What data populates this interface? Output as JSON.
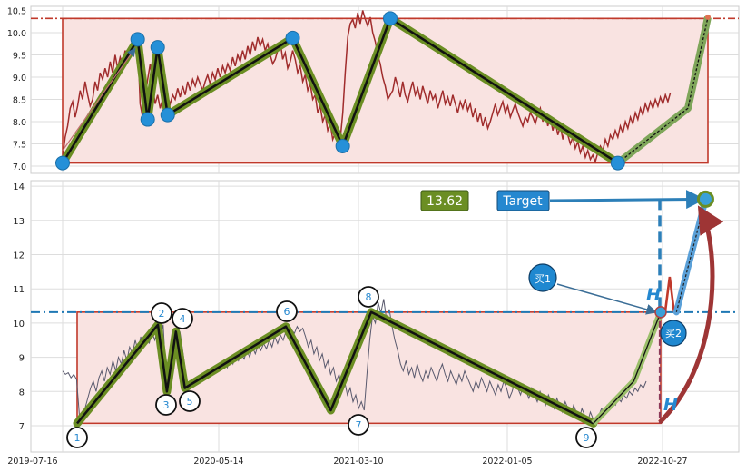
{
  "chart_data": [
    {
      "type": "line",
      "panel": "top",
      "ylim": [
        6.9,
        10.65
      ],
      "yticks": [
        7.0,
        7.5,
        8.0,
        8.5,
        9.0,
        9.5,
        10.0,
        10.5
      ],
      "ytick_labels": [
        "7.0",
        "7.5",
        "8.0",
        "8.5",
        "9.0",
        "9.5",
        "10.0",
        "10.5"
      ],
      "resistance_level": 10.32,
      "box": {
        "x": [
          0,
          258
        ],
        "y": [
          7.07,
          10.32
        ]
      },
      "pivots": {
        "x": [
          0,
          30,
          34,
          38,
          42,
          92,
          112,
          131,
          222
        ],
        "y": [
          7.07,
          9.85,
          8.05,
          9.67,
          8.15,
          9.88,
          7.45,
          10.32,
          7.07
        ]
      },
      "projection": {
        "x": [
          222,
          250,
          258
        ],
        "y": [
          7.07,
          8.3,
          10.35
        ]
      },
      "price_series": [
        7.2,
        7.65,
        7.9,
        8.3,
        8.45,
        8.1,
        8.35,
        8.7,
        8.5,
        8.9,
        8.6,
        8.35,
        8.5,
        8.9,
        8.7,
        9.1,
        8.95,
        9.2,
        9.0,
        9.35,
        9.1,
        9.5,
        9.2,
        9.45,
        9.3,
        9.6,
        9.4,
        9.55,
        9.75,
        9.6,
        9.85,
        8.4,
        8.1,
        8.55,
        8.95,
        9.3,
        8.8,
        8.4,
        8.6,
        8.3,
        8.5,
        8.45,
        8.55,
        8.4,
        8.6,
        8.5,
        8.75,
        8.55,
        8.8,
        8.6,
        8.9,
        8.7,
        8.95,
        8.8,
        9.0,
        8.85,
        8.7,
        8.9,
        9.05,
        8.85,
        9.1,
        8.95,
        9.2,
        9.0,
        9.25,
        9.1,
        9.3,
        9.15,
        9.45,
        9.25,
        9.5,
        9.35,
        9.6,
        9.4,
        9.7,
        9.5,
        9.8,
        9.6,
        9.9,
        9.7,
        9.85,
        9.6,
        9.75,
        9.5,
        9.3,
        9.4,
        9.6,
        9.8,
        9.4,
        9.55,
        9.2,
        9.35,
        9.6,
        9.4,
        9.1,
        9.25,
        8.9,
        9.05,
        8.7,
        8.85,
        8.5,
        8.6,
        8.2,
        8.35,
        8.0,
        8.15,
        7.8,
        7.95,
        7.6,
        7.75,
        7.5,
        7.6,
        8.2,
        9.1,
        9.9,
        10.2,
        10.3,
        10.1,
        10.45,
        10.2,
        10.5,
        10.3,
        10.15,
        10.35,
        10.0,
        9.8,
        9.5,
        9.3,
        9.0,
        8.8,
        8.5,
        8.6,
        8.7,
        9.0,
        8.8,
        8.55,
        8.9,
        8.6,
        8.45,
        8.7,
        8.9,
        8.6,
        8.75,
        8.5,
        8.8,
        8.6,
        8.4,
        8.7,
        8.5,
        8.6,
        8.3,
        8.5,
        8.7,
        8.4,
        8.55,
        8.35,
        8.6,
        8.4,
        8.2,
        8.45,
        8.3,
        8.5,
        8.25,
        8.4,
        8.1,
        8.3,
        8.0,
        8.2,
        7.9,
        8.1,
        7.85,
        8.0,
        8.2,
        8.4,
        8.15,
        8.3,
        8.45,
        8.2,
        8.35,
        8.1,
        8.25,
        8.4,
        8.2,
        8.05,
        7.9,
        8.1,
        8.0,
        8.2,
        8.1,
        7.95,
        8.15,
        8.3,
        8.0,
        8.2,
        7.9,
        8.1,
        7.8,
        8.0,
        7.7,
        7.9,
        7.6,
        7.85,
        7.7,
        7.5,
        7.65,
        7.4,
        7.55,
        7.3,
        7.45,
        7.2,
        7.35,
        7.15,
        7.25,
        7.1,
        7.3,
        7.45,
        7.35,
        7.6,
        7.45,
        7.7,
        7.6,
        7.8,
        7.65,
        7.9,
        7.75,
        8.0,
        7.85,
        8.1,
        7.95,
        8.2,
        8.05,
        8.3,
        8.15,
        8.4,
        8.25,
        8.45,
        8.3,
        8.5,
        8.35,
        8.55,
        8.4,
        8.6,
        8.45,
        8.65
      ]
    },
    {
      "type": "line",
      "panel": "bottom",
      "ylim": [
        6.25,
        14.2
      ],
      "yticks": [
        7,
        8,
        9,
        10,
        11,
        12,
        13,
        14
      ],
      "ytick_labels": [
        "7",
        "8",
        "9",
        "10",
        "11",
        "12",
        "13",
        "14"
      ],
      "x_dates": [
        "2019-07-16",
        "2020-05-14",
        "2021-03-10",
        "2022-01-05",
        "2022-10-27"
      ],
      "resistance_level": 10.32,
      "box": {
        "x": [
          0,
          260
        ],
        "y": [
          7.07,
          10.32
        ]
      },
      "pivots": {
        "x": [
          0,
          36,
          40,
          44,
          48,
          93,
          113,
          131,
          230
        ],
        "y": [
          7.07,
          9.95,
          8.0,
          9.75,
          8.1,
          9.9,
          7.45,
          10.32,
          7.07
        ],
        "labels": [
          "1",
          "2",
          "3",
          "4",
          "5",
          "6",
          "7",
          "8",
          "9"
        ]
      },
      "projection": {
        "x": [
          230,
          248,
          260
        ],
        "y": [
          7.07,
          8.3,
          10.32
        ]
      },
      "buy_points": [
        {
          "label": "买1",
          "x": 260,
          "y": 10.32
        },
        {
          "label": "买2",
          "x": 267,
          "y": 10.32
        }
      ],
      "spike": {
        "x": [
          262,
          264,
          266
        ],
        "y": [
          10.32,
          11.35,
          10.32
        ]
      },
      "target": {
        "label": "Target",
        "value": "13.62",
        "x": 280,
        "y": 13.62
      },
      "height_marker": "H",
      "price_series": [
        8.6,
        8.5,
        8.55,
        8.4,
        8.5,
        8.35,
        7.3,
        7.2,
        7.5,
        7.8,
        8.1,
        8.3,
        8.0,
        8.4,
        8.6,
        8.3,
        8.7,
        8.5,
        8.9,
        8.6,
        9.0,
        8.8,
        9.2,
        8.9,
        9.3,
        9.1,
        9.5,
        9.2,
        9.6,
        9.3,
        9.7,
        9.4,
        9.75,
        9.5,
        9.8,
        9.6,
        9.95,
        8.5,
        8.0,
        8.4,
        9.0,
        9.5,
        9.75,
        9.2,
        8.6,
        8.1,
        8.3,
        8.2,
        8.4,
        8.3,
        8.5,
        8.4,
        8.6,
        8.5,
        8.7,
        8.6,
        8.8,
        8.65,
        8.9,
        8.7,
        9.0,
        8.8,
        9.05,
        8.9,
        9.1,
        8.95,
        9.2,
        9.0,
        9.3,
        9.1,
        9.35,
        9.2,
        9.4,
        9.25,
        9.5,
        9.3,
        9.6,
        9.4,
        9.65,
        9.5,
        9.75,
        9.6,
        9.8,
        9.7,
        9.9,
        9.75,
        9.85,
        9.6,
        9.3,
        9.5,
        9.1,
        9.3,
        8.9,
        9.1,
        8.7,
        8.9,
        8.5,
        8.7,
        8.3,
        8.5,
        8.1,
        8.3,
        7.9,
        8.1,
        7.7,
        7.9,
        7.5,
        7.7,
        7.45,
        8.5,
        9.5,
        10.2,
        10.0,
        10.6,
        10.3,
        10.7,
        10.1,
        10.4,
        9.9,
        9.5,
        9.2,
        8.8,
        8.6,
        8.9,
        8.5,
        8.7,
        8.4,
        8.8,
        8.5,
        8.3,
        8.6,
        8.4,
        8.7,
        8.5,
        8.3,
        8.6,
        8.8,
        8.5,
        8.3,
        8.6,
        8.4,
        8.2,
        8.5,
        8.3,
        8.6,
        8.4,
        8.2,
        8.0,
        8.3,
        8.1,
        8.4,
        8.2,
        8.0,
        8.3,
        8.1,
        7.9,
        8.2,
        8.0,
        8.3,
        8.1,
        7.8,
        8.0,
        8.3,
        8.1,
        7.9,
        8.2,
        8.0,
        7.8,
        8.1,
        7.9,
        7.7,
        8.0,
        7.8,
        7.6,
        7.9,
        7.7,
        7.5,
        7.8,
        7.6,
        7.4,
        7.7,
        7.5,
        7.3,
        7.6,
        7.4,
        7.2,
        7.5,
        7.3,
        7.1,
        7.4,
        7.2,
        7.1,
        7.3,
        7.5,
        7.4,
        7.6,
        7.5,
        7.7,
        7.6,
        7.8,
        7.7,
        7.9,
        7.8,
        8.0,
        7.9,
        8.1,
        8.0,
        8.2,
        8.1,
        8.3
      ]
    }
  ]
}
